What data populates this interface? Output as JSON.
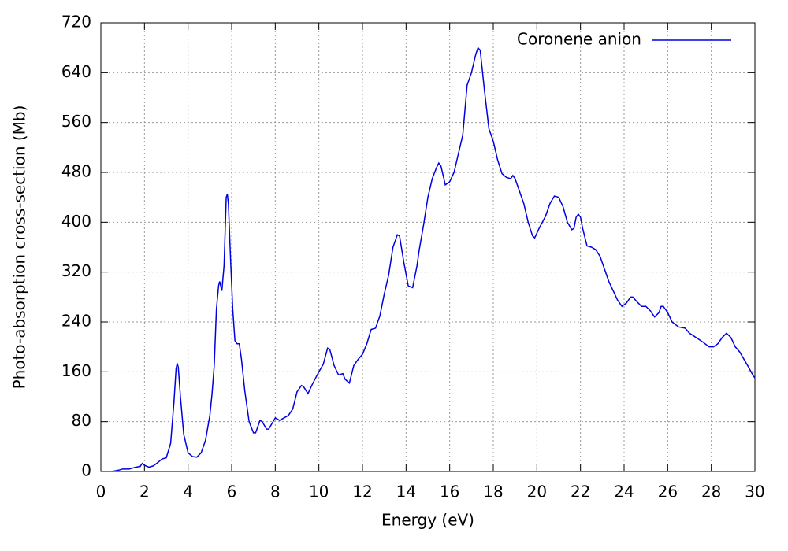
{
  "chart_data": {
    "type": "line",
    "xlabel": "Energy (eV)",
    "ylabel": "Photo-absorption cross-section (Mb)",
    "x": [
      0.5,
      0.8,
      1.0,
      1.3,
      1.6,
      1.8,
      1.9,
      2.0,
      2.2,
      2.4,
      2.6,
      2.8,
      3.0,
      3.2,
      3.35,
      3.45,
      3.5,
      3.55,
      3.65,
      3.8,
      4.0,
      4.2,
      4.4,
      4.6,
      4.8,
      5.0,
      5.1,
      5.2,
      5.3,
      5.4,
      5.45,
      5.55,
      5.65,
      5.75,
      5.8,
      5.85,
      5.95,
      6.05,
      6.15,
      6.25,
      6.35,
      6.45,
      6.6,
      6.8,
      7.0,
      7.1,
      7.3,
      7.4,
      7.6,
      7.7,
      7.9,
      8.0,
      8.2,
      8.4,
      8.6,
      8.8,
      9.0,
      9.2,
      9.3,
      9.5,
      9.7,
      10.0,
      10.2,
      10.4,
      10.5,
      10.7,
      10.9,
      11.1,
      11.2,
      11.4,
      11.6,
      11.8,
      12.0,
      12.2,
      12.4,
      12.6,
      12.8,
      13.0,
      13.2,
      13.4,
      13.6,
      13.7,
      13.9,
      14.1,
      14.3,
      14.5,
      14.6,
      14.8,
      15.0,
      15.2,
      15.4,
      15.5,
      15.6,
      15.8,
      16.0,
      16.2,
      16.4,
      16.6,
      16.8,
      17.0,
      17.2,
      17.3,
      17.4,
      17.6,
      17.8,
      18.0,
      18.2,
      18.4,
      18.6,
      18.8,
      18.9,
      19.0,
      19.2,
      19.4,
      19.6,
      19.8,
      19.9,
      20.1,
      20.4,
      20.6,
      20.8,
      21.0,
      21.2,
      21.4,
      21.6,
      21.7,
      21.8,
      21.9,
      22.0,
      22.1,
      22.3,
      22.5,
      22.7,
      22.9,
      23.1,
      23.3,
      23.5,
      23.7,
      23.9,
      24.1,
      24.3,
      24.4,
      24.6,
      24.8,
      25.0,
      25.2,
      25.4,
      25.6,
      25.7,
      25.8,
      26.0,
      26.2,
      26.5,
      26.8,
      27.0,
      27.3,
      27.6,
      27.9,
      28.1,
      28.3,
      28.5,
      28.7,
      28.9,
      29.1,
      29.3,
      29.5,
      29.7,
      29.9,
      30.0
    ],
    "series": [
      {
        "name": "Coronene anion",
        "color": "#0000e0",
        "values": [
          0,
          2,
          4,
          4,
          7,
          8,
          13,
          10,
          7,
          9,
          14,
          20,
          22,
          45,
          110,
          165,
          173,
          168,
          120,
          60,
          30,
          24,
          23,
          30,
          50,
          90,
          125,
          170,
          260,
          298,
          305,
          290,
          330,
          440,
          445,
          430,
          340,
          260,
          210,
          205,
          205,
          180,
          130,
          80,
          62,
          62,
          82,
          80,
          68,
          68,
          80,
          86,
          82,
          86,
          90,
          100,
          128,
          138,
          136,
          125,
          140,
          160,
          172,
          198,
          196,
          170,
          155,
          157,
          148,
          142,
          170,
          180,
          188,
          205,
          228,
          230,
          250,
          285,
          315,
          360,
          380,
          378,
          335,
          298,
          295,
          330,
          355,
          395,
          440,
          470,
          488,
          495,
          490,
          460,
          465,
          480,
          510,
          540,
          620,
          640,
          670,
          680,
          676,
          610,
          550,
          530,
          500,
          478,
          472,
          470,
          475,
          470,
          450,
          430,
          400,
          378,
          375,
          390,
          410,
          430,
          442,
          440,
          425,
          400,
          388,
          390,
          408,
          413,
          408,
          390,
          362,
          360,
          356,
          345,
          325,
          305,
          290,
          275,
          265,
          270,
          280,
          280,
          272,
          265,
          265,
          258,
          248,
          255,
          265,
          265,
          255,
          240,
          232,
          230,
          222,
          215,
          208,
          200,
          200,
          205,
          215,
          222,
          215,
          200,
          192,
          180,
          168,
          155,
          150
        ]
      }
    ],
    "xlim": [
      0,
      30
    ],
    "xticks": [
      0,
      2,
      4,
      6,
      8,
      10,
      12,
      14,
      16,
      18,
      20,
      22,
      24,
      26,
      28,
      30
    ],
    "ylim": [
      0,
      720
    ],
    "yticks": [
      0,
      80,
      160,
      240,
      320,
      400,
      480,
      560,
      640,
      720
    ],
    "grid": true,
    "legend": "top-right"
  }
}
